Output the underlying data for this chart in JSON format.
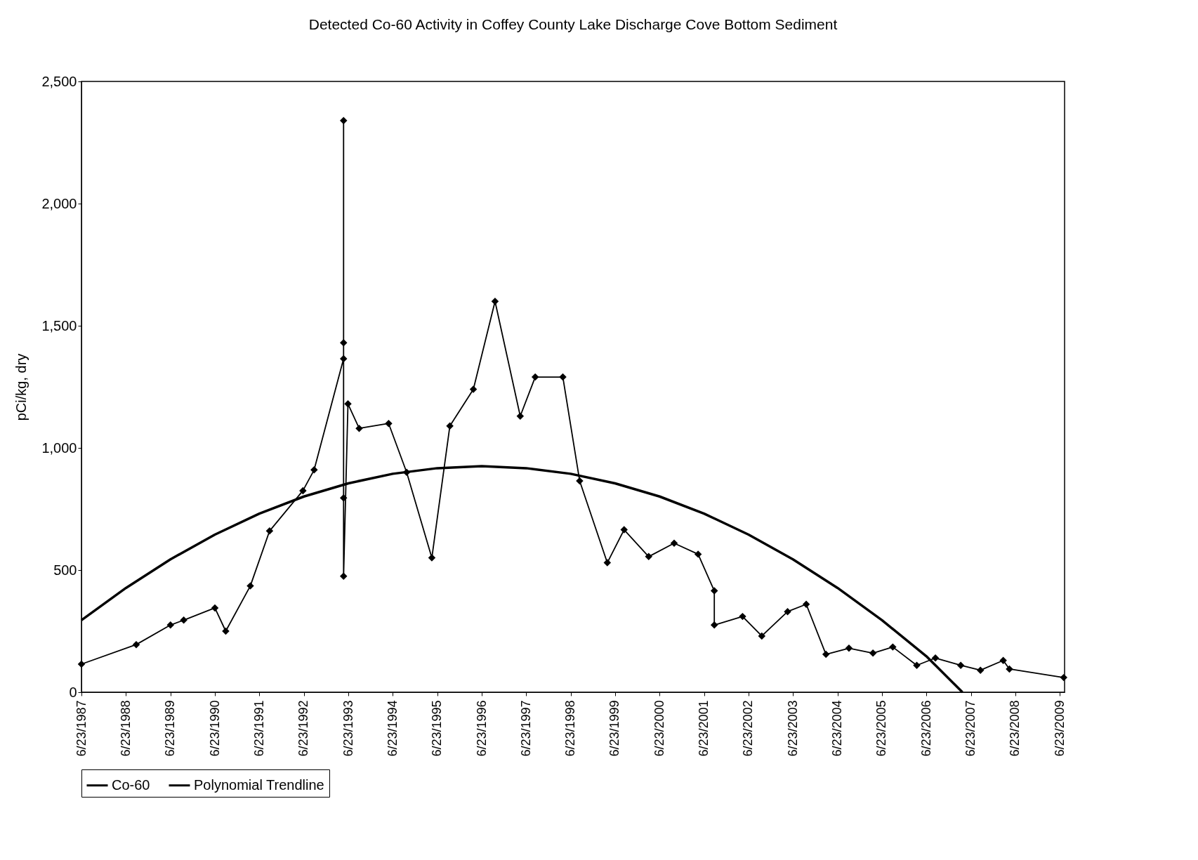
{
  "chart_data": {
    "type": "line",
    "title": "Detected Co-60 Activity in Coffey County Lake Discharge Cove Bottom Sediment",
    "ylabel": "pCi/kg, dry",
    "xlim": [
      "1987-06-23",
      "2009-08-01"
    ],
    "xticks": [
      {
        "value": "1987-06-23",
        "label": "6/23/1987"
      },
      {
        "value": "1988-06-23",
        "label": "6/23/1988"
      },
      {
        "value": "1989-06-23",
        "label": "6/23/1989"
      },
      {
        "value": "1990-06-23",
        "label": "6/23/1990"
      },
      {
        "value": "1991-06-23",
        "label": "6/23/1991"
      },
      {
        "value": "1992-06-23",
        "label": "6/23/1992"
      },
      {
        "value": "1993-06-23",
        "label": "6/23/1993"
      },
      {
        "value": "1994-06-23",
        "label": "6/23/1994"
      },
      {
        "value": "1995-06-23",
        "label": "6/23/1995"
      },
      {
        "value": "1996-06-23",
        "label": "6/23/1996"
      },
      {
        "value": "1997-06-23",
        "label": "6/23/1997"
      },
      {
        "value": "1998-06-23",
        "label": "6/23/1998"
      },
      {
        "value": "1999-06-23",
        "label": "6/23/1999"
      },
      {
        "value": "2000-06-23",
        "label": "6/23/2000"
      },
      {
        "value": "2001-06-23",
        "label": "6/23/2001"
      },
      {
        "value": "2002-06-23",
        "label": "6/23/2002"
      },
      {
        "value": "2003-06-23",
        "label": "6/23/2003"
      },
      {
        "value": "2004-06-23",
        "label": "6/23/2004"
      },
      {
        "value": "2005-06-23",
        "label": "6/23/2005"
      },
      {
        "value": "2006-06-23",
        "label": "6/23/2006"
      },
      {
        "value": "2007-06-23",
        "label": "6/23/2007"
      },
      {
        "value": "2008-06-23",
        "label": "6/23/2008"
      },
      {
        "value": "2009-06-23",
        "label": "6/23/2009"
      }
    ],
    "ylim": [
      0,
      2500
    ],
    "yticks": [
      0,
      500,
      {
        "value": 1000,
        "label": "1,000"
      },
      {
        "value": 1500,
        "label": "1,500"
      },
      {
        "value": 2000,
        "label": "2,000"
      },
      {
        "value": 2500,
        "label": "2,500"
      }
    ],
    "grid": false,
    "legend": "bottom",
    "line_style": "solid",
    "series": [
      {
        "name": "Co-60",
        "color": "#000000",
        "marker": "diamond",
        "x": [
          "1987-06-23",
          "1988-09-15",
          "1989-06-23",
          "1989-10-10",
          "1990-06-23",
          "1990-09-20",
          "1991-04-10",
          "1991-09-15",
          "1992-06-15",
          "1992-09-15",
          "1993-05-15",
          "1993-05-15",
          "1993-05-15",
          "1993-05-15",
          "1993-05-15",
          "1993-06-20",
          "1993-09-20",
          "1994-05-20",
          "1994-10-15",
          "1995-05-10",
          "1995-10-05",
          "1996-04-15",
          "1996-10-10",
          "1997-05-05",
          "1997-09-05",
          "1998-04-20",
          "1998-09-05",
          "1999-04-20",
          "1999-09-05",
          "2000-03-25",
          "2000-10-20",
          "2001-05-05",
          "2001-09-15",
          "2001-09-15",
          "2002-05-05",
          "2002-10-10",
          "2003-05-10",
          "2003-10-10",
          "2004-03-20",
          "2004-09-25",
          "2005-04-10",
          "2005-09-20",
          "2006-04-05",
          "2006-09-05",
          "2007-04-01",
          "2007-09-10",
          "2008-03-15",
          "2008-05-05",
          "2009-07-25"
        ],
        "values": [
          115,
          195,
          275,
          295,
          345,
          250,
          435,
          660,
          825,
          910,
          1365,
          1430,
          2340,
          795,
          475,
          1180,
          1080,
          1100,
          900,
          550,
          1090,
          1240,
          1600,
          1130,
          1290,
          1290,
          865,
          530,
          665,
          555,
          610,
          565,
          415,
          275,
          310,
          230,
          330,
          360,
          155,
          180,
          160,
          185,
          110,
          140,
          110,
          90,
          130,
          95,
          60
        ]
      },
      {
        "name": "Polynomial Trendline",
        "color": "#000000",
        "marker": "none",
        "x": [
          "1987-06-23",
          "1988-06-23",
          "1989-06-23",
          "1990-06-23",
          "1991-06-23",
          "1992-06-23",
          "1993-06-23",
          "1994-06-23",
          "1995-06-23",
          "1996-06-23",
          "1997-06-23",
          "1998-06-23",
          "1999-06-23",
          "2000-06-23",
          "2001-06-23",
          "2002-06-23",
          "2003-06-23",
          "2004-06-23",
          "2005-06-23",
          "2006-06-23",
          "2007-04-15"
        ],
        "values": [
          295,
          427,
          544,
          645,
          731,
          801,
          855,
          894,
          917,
          925,
          917,
          894,
          855,
          801,
          731,
          645,
          544,
          427,
          295,
          147,
          0
        ]
      }
    ]
  }
}
